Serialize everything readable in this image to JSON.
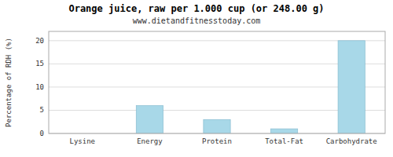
{
  "chart_data": {
    "type": "bar",
    "title": "Orange juice, raw per 1.000 cup (or 248.00 g)",
    "subtitle": "www.dietandfitnesstoday.com",
    "ylabel": "Percentage of RDH (%)",
    "categories": [
      "Lysine",
      "Energy",
      "Protein",
      "Total-Fat",
      "Carbohydrate"
    ],
    "values": [
      0,
      6,
      3,
      1,
      20
    ],
    "color": "#a8d8e8",
    "ylim": [
      0,
      22
    ],
    "yticks": [
      0,
      5,
      10,
      15,
      20
    ],
    "grid": true
  }
}
